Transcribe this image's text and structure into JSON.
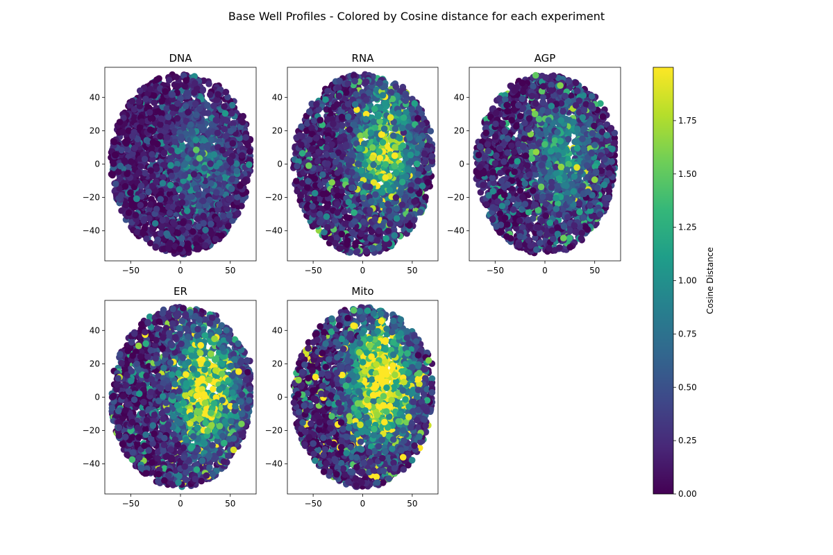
{
  "figure": {
    "suptitle": "Base Well Profiles - Colored by Cosine distance for each experiment"
  },
  "chart_data": {
    "type": "scatter",
    "colormap": "viridis",
    "xlim": [
      -76,
      76
    ],
    "ylim": [
      -58,
      58
    ],
    "x_ticks": [
      -50,
      0,
      50
    ],
    "x_tick_labels": [
      "−50",
      "0",
      "50"
    ],
    "y_ticks": [
      -40,
      -20,
      0,
      20,
      40
    ],
    "y_tick_labels": [
      "−40",
      "−20",
      "0",
      "20",
      "40"
    ],
    "grid": false,
    "colorbar": {
      "label": "Cosine Distance",
      "min": 0.0,
      "max": 2.0,
      "ticks": [
        0.0,
        0.25,
        0.5,
        0.75,
        1.0,
        1.25,
        1.5,
        1.75
      ],
      "tick_labels": [
        "0.00",
        "0.25",
        "0.50",
        "0.75",
        "1.00",
        "1.25",
        "1.50",
        "1.75"
      ]
    },
    "viridis_stops": [
      "#440154",
      "#482878",
      "#3e4989",
      "#31688e",
      "#26828e",
      "#1f9e89",
      "#35b779",
      "#6ece58",
      "#b5de2b",
      "#fde725"
    ],
    "cloud": {
      "x_range": [
        -70,
        70
      ],
      "y_range": [
        -54,
        54
      ],
      "points_per_panel": 2600
    },
    "panels": [
      {
        "title": "DNA",
        "seed": 11,
        "hot_x": 22,
        "hot_y": 5,
        "hot_strength": 0.35,
        "noise": 0.25
      },
      {
        "title": "RNA",
        "seed": 23,
        "hot_x": 22,
        "hot_y": 10,
        "hot_strength": 0.8,
        "noise": 0.45
      },
      {
        "title": "AGP",
        "seed": 37,
        "hot_x": 20,
        "hot_y": 5,
        "hot_strength": 0.5,
        "noise": 0.4
      },
      {
        "title": "ER",
        "seed": 41,
        "hot_x": 25,
        "hot_y": 5,
        "hot_strength": 1.05,
        "noise": 0.5
      },
      {
        "title": "Mito",
        "seed": 53,
        "hot_x": 18,
        "hot_y": 10,
        "hot_strength": 1.15,
        "noise": 0.6
      }
    ]
  }
}
